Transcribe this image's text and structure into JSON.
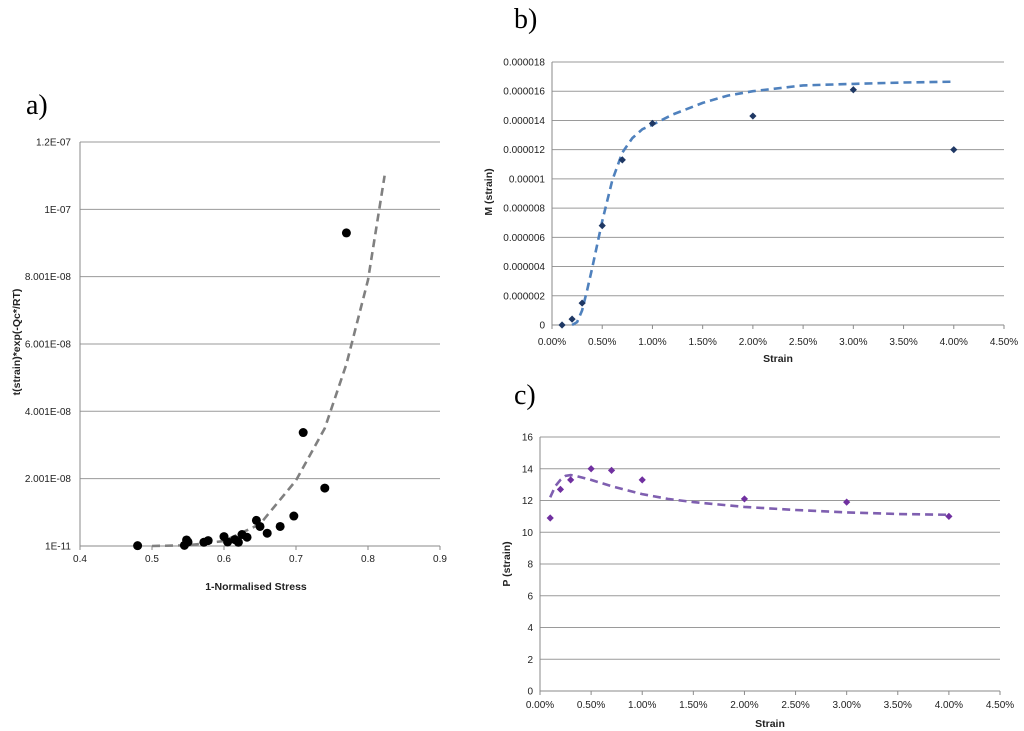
{
  "chart_data": [
    {
      "panel": "a)",
      "type": "scatter",
      "xlabel": "1-Normalised Stress",
      "ylabel": "t(strain)*exp(-Qc*/RT)",
      "xlim": [
        0.4,
        0.9
      ],
      "ylim": [
        0,
        1.2e-07
      ],
      "x_ticks": [
        0.4,
        0.5,
        0.6,
        0.7,
        0.8,
        0.9
      ],
      "x_tick_labels": [
        "0.4",
        "0.5",
        "0.6",
        "0.7",
        "0.8",
        "0.9"
      ],
      "y_ticks": [
        1e-11,
        2.001e-08,
        4.001e-08,
        6.001e-08,
        8.001e-08,
        1e-07,
        1.2e-07
      ],
      "y_tick_labels": [
        "1E-11",
        "2.001E-08",
        "4.001E-08",
        "6.001E-08",
        "8.001E-08",
        "1E-07",
        "1.2E-07"
      ],
      "grid": "horizontal",
      "marker_color": "#000000",
      "fit_color": "#808080",
      "series": [
        {
          "name": "data",
          "points": [
            [
              0.48,
              1e-10
            ],
            [
              0.545,
              2e-10
            ],
            [
              0.55,
              1.2e-09
            ],
            [
              0.548,
              1.8e-09
            ],
            [
              0.572,
              1.1e-09
            ],
            [
              0.578,
              1.6e-09
            ],
            [
              0.6,
              2.8e-09
            ],
            [
              0.605,
              1.2e-09
            ],
            [
              0.615,
              1.9e-09
            ],
            [
              0.62,
              1.1e-09
            ],
            [
              0.625,
              3.4e-09
            ],
            [
              0.632,
              2.6e-09
            ],
            [
              0.645,
              7.6e-09
            ],
            [
              0.65,
              5.8e-09
            ],
            [
              0.66,
              3.8e-09
            ],
            [
              0.678,
              5.8e-09
            ],
            [
              0.697,
              8.9e-09
            ],
            [
              0.71,
              3.37e-08
            ],
            [
              0.74,
              1.72e-08
            ],
            [
              0.77,
              9.3e-08
            ]
          ]
        },
        {
          "name": "fit",
          "line": [
            [
              0.5,
              1e-11
            ],
            [
              0.55,
              2e-10
            ],
            [
              0.6,
              1.5e-09
            ],
            [
              0.65,
              6.5e-09
            ],
            [
              0.7,
              1.95e-08
            ],
            [
              0.74,
              3.5e-08
            ],
            [
              0.77,
              5.4e-08
            ],
            [
              0.8,
              7.9e-08
            ],
            [
              0.823,
              1.1e-07
            ]
          ]
        }
      ]
    },
    {
      "panel": "b)",
      "type": "scatter",
      "xlabel": "Strain",
      "ylabel": "M (strain)",
      "xlim": [
        0,
        0.045
      ],
      "ylim": [
        0,
        1.8e-05
      ],
      "x_ticks": [
        0,
        0.005,
        0.01,
        0.015,
        0.02,
        0.025,
        0.03,
        0.035,
        0.04,
        0.045
      ],
      "x_tick_labels": [
        "0.00%",
        "0.50%",
        "1.00%",
        "1.50%",
        "2.00%",
        "2.50%",
        "3.00%",
        "3.50%",
        "4.00%",
        "4.50%"
      ],
      "y_ticks": [
        0,
        2e-06,
        4e-06,
        6e-06,
        8e-06,
        1e-05,
        1.2e-05,
        1.4e-05,
        1.6e-05,
        1.8e-05
      ],
      "y_tick_labels": [
        "0",
        "0.000002",
        "0.000004",
        "0.000006",
        "0.000008",
        "0.00001",
        "0.000012",
        "0.000014",
        "0.000016",
        "0.000018"
      ],
      "grid": "horizontal",
      "marker_color": "#1f3864",
      "fit_color": "#4f81bd",
      "series": [
        {
          "name": "data",
          "points": [
            [
              0.001,
              0.0
            ],
            [
              0.002,
              4e-07
            ],
            [
              0.003,
              1.5e-06
            ],
            [
              0.005,
              6.8e-06
            ],
            [
              0.007,
              1.13e-05
            ],
            [
              0.01,
              1.38e-05
            ],
            [
              0.02,
              1.43e-05
            ],
            [
              0.03,
              1.61e-05
            ],
            [
              0.04,
              1.2e-05
            ]
          ]
        },
        {
          "name": "fit",
          "line": [
            [
              0.002,
              0.0
            ],
            [
              0.0025,
              2e-07
            ],
            [
              0.003,
              1e-06
            ],
            [
              0.0035,
              2.4e-06
            ],
            [
              0.004,
              3.9e-06
            ],
            [
              0.0045,
              5.5e-06
            ],
            [
              0.005,
              7.1e-06
            ],
            [
              0.006,
              9.9e-06
            ],
            [
              0.007,
              1.18e-05
            ],
            [
              0.008,
              1.28e-05
            ],
            [
              0.009,
              1.34e-05
            ],
            [
              0.01,
              1.37e-05
            ],
            [
              0.012,
              1.44e-05
            ],
            [
              0.015,
              1.52e-05
            ],
            [
              0.0175,
              1.57e-05
            ],
            [
              0.02,
              1.6e-05
            ],
            [
              0.025,
              1.64e-05
            ],
            [
              0.03,
              1.65e-05
            ],
            [
              0.035,
              1.66e-05
            ],
            [
              0.04,
              1.665e-05
            ]
          ]
        }
      ]
    },
    {
      "panel": "c)",
      "type": "scatter",
      "xlabel": "Strain",
      "ylabel": "P (strain)",
      "xlim": [
        0,
        0.045
      ],
      "ylim": [
        0,
        16
      ],
      "x_ticks": [
        0,
        0.005,
        0.01,
        0.015,
        0.02,
        0.025,
        0.03,
        0.035,
        0.04,
        0.045
      ],
      "x_tick_labels": [
        "0.00%",
        "0.50%",
        "1.00%",
        "1.50%",
        "2.00%",
        "2.50%",
        "3.00%",
        "3.50%",
        "4.00%",
        "4.50%"
      ],
      "y_ticks": [
        0,
        2,
        4,
        6,
        8,
        10,
        12,
        14,
        16
      ],
      "y_tick_labels": [
        "0",
        "2",
        "4",
        "6",
        "8",
        "10",
        "12",
        "14",
        "16"
      ],
      "grid": "horizontal",
      "marker_color": "#7030a0",
      "fit_color": "#7f5fb0",
      "series": [
        {
          "name": "data",
          "points": [
            [
              0.001,
              10.9
            ],
            [
              0.002,
              12.7
            ],
            [
              0.003,
              13.3
            ],
            [
              0.005,
              14.0
            ],
            [
              0.007,
              13.9
            ],
            [
              0.01,
              13.3
            ],
            [
              0.02,
              12.1
            ],
            [
              0.03,
              11.9
            ],
            [
              0.04,
              11.0
            ]
          ]
        },
        {
          "name": "fit",
          "line": [
            [
              0.001,
              12.2
            ],
            [
              0.0015,
              12.9
            ],
            [
              0.002,
              13.3
            ],
            [
              0.0025,
              13.55
            ],
            [
              0.003,
              13.6
            ],
            [
              0.0035,
              13.55
            ],
            [
              0.005,
              13.3
            ],
            [
              0.007,
              12.9
            ],
            [
              0.01,
              12.4
            ],
            [
              0.0125,
              12.1
            ],
            [
              0.015,
              11.9
            ],
            [
              0.02,
              11.6
            ],
            [
              0.025,
              11.4
            ],
            [
              0.03,
              11.25
            ],
            [
              0.035,
              11.15
            ],
            [
              0.04,
              11.1
            ]
          ]
        }
      ]
    }
  ]
}
